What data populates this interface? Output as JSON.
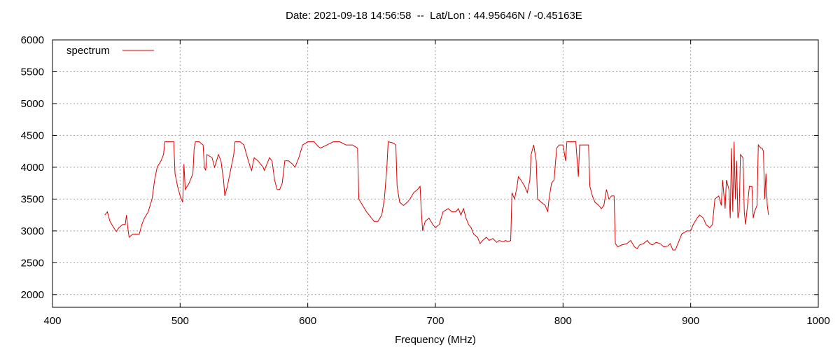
{
  "chart_data": {
    "type": "line",
    "title": "Date: 2021-09-18 14:56:58  --  Lat/Lon : 44.95646N / -0.45163E",
    "x_label": "Frequency (MHz)",
    "xlim": [
      400,
      1000
    ],
    "xticks": [
      400,
      500,
      600,
      700,
      800,
      900,
      1000
    ],
    "ylim": [
      1800,
      6000
    ],
    "yticks": [
      2000,
      2500,
      3000,
      3500,
      4000,
      4500,
      5000,
      5500,
      6000
    ],
    "grid": true,
    "legend": "top-left",
    "x": [
      441,
      443,
      445,
      448,
      450,
      452,
      455,
      457,
      458,
      459,
      460,
      463,
      466,
      468,
      470,
      472,
      475,
      478,
      480,
      482,
      485,
      487,
      488,
      490,
      493,
      495,
      496,
      498,
      500,
      502,
      503,
      504,
      507,
      510,
      511,
      512,
      515,
      518,
      519,
      520,
      521,
      525,
      527,
      530,
      532,
      534,
      535,
      537,
      540,
      542,
      543,
      547,
      550,
      552,
      555,
      556,
      558,
      561,
      563,
      565,
      566,
      568,
      570,
      572,
      574,
      576,
      578,
      580,
      582,
      585,
      588,
      590,
      593,
      596,
      600,
      605,
      608,
      610,
      615,
      620,
      625,
      630,
      635,
      639,
      640,
      643,
      646,
      648,
      650,
      652,
      655,
      658,
      660,
      662,
      663,
      667,
      669,
      670,
      672,
      675,
      678,
      680,
      683,
      686,
      688,
      689,
      690,
      692,
      695,
      698,
      700,
      703,
      706,
      710,
      713,
      716,
      718,
      720,
      722,
      724,
      726,
      728,
      730,
      733,
      735,
      737,
      740,
      742,
      745,
      748,
      750,
      753,
      755,
      757,
      759,
      760,
      762,
      764,
      765,
      767,
      770,
      772,
      774,
      775,
      777,
      779,
      780,
      783,
      786,
      788,
      789,
      791,
      793,
      795,
      797,
      800,
      802,
      803,
      806,
      810,
      812,
      813,
      815,
      820,
      821,
      823,
      825,
      828,
      830,
      832,
      834,
      836,
      838,
      840,
      841,
      843,
      846,
      850,
      853,
      856,
      858,
      860,
      863,
      866,
      868,
      870,
      873,
      876,
      879,
      882,
      884,
      886,
      888,
      890,
      893,
      897,
      900,
      902,
      905,
      907,
      910,
      912,
      915,
      917,
      919,
      922,
      924,
      925,
      927,
      928,
      930,
      931,
      932,
      933,
      934,
      935,
      936,
      937,
      938,
      939,
      941,
      942,
      943,
      944,
      946,
      948,
      949,
      950,
      952,
      953,
      955,
      956,
      957,
      958,
      959,
      960,
      961
    ],
    "series": [
      {
        "name": "spectrum",
        "color": "#e00000",
        "values": [
          3250,
          3300,
          3150,
          3050,
          2990,
          3050,
          3100,
          3100,
          3250,
          3050,
          2900,
          2950,
          2950,
          2950,
          3100,
          3200,
          3300,
          3500,
          3800,
          4000,
          4100,
          4200,
          4400,
          4400,
          4400,
          4400,
          3900,
          3700,
          3550,
          3450,
          4050,
          3650,
          3750,
          3900,
          4300,
          4400,
          4400,
          4350,
          4000,
          3950,
          4200,
          4150,
          4000,
          4200,
          4100,
          3800,
          3550,
          3700,
          4000,
          4200,
          4400,
          4400,
          4350,
          4200,
          4000,
          3950,
          4150,
          4100,
          4050,
          4000,
          3950,
          4050,
          4150,
          4100,
          3800,
          3650,
          3650,
          3750,
          4100,
          4100,
          4050,
          4000,
          4150,
          4350,
          4400,
          4400,
          4330,
          4300,
          4350,
          4400,
          4400,
          4350,
          4350,
          4300,
          3500,
          3400,
          3300,
          3250,
          3200,
          3150,
          3150,
          3250,
          3500,
          4000,
          4400,
          4380,
          4350,
          3700,
          3450,
          3400,
          3450,
          3500,
          3600,
          3650,
          3700,
          3300,
          3000,
          3150,
          3200,
          3100,
          3050,
          3100,
          3300,
          3350,
          3300,
          3300,
          3350,
          3250,
          3350,
          3200,
          3100,
          3050,
          2950,
          2900,
          2800,
          2850,
          2900,
          2850,
          2880,
          2820,
          2850,
          2830,
          2850,
          2830,
          2850,
          3600,
          3500,
          3700,
          3850,
          3800,
          3700,
          3600,
          3800,
          4200,
          4350,
          4100,
          3500,
          3450,
          3400,
          3300,
          3500,
          3750,
          3800,
          4300,
          4350,
          4350,
          4100,
          4400,
          4400,
          4400,
          3850,
          4350,
          4350,
          4350,
          3700,
          3550,
          3450,
          3400,
          3350,
          3400,
          3650,
          3500,
          3550,
          3550,
          2800,
          2750,
          2780,
          2800,
          2850,
          2750,
          2720,
          2780,
          2800,
          2850,
          2800,
          2780,
          2820,
          2800,
          2750,
          2760,
          2800,
          2700,
          2700,
          2800,
          2950,
          3000,
          3000,
          3100,
          3200,
          3250,
          3200,
          3100,
          3050,
          3100,
          3500,
          3550,
          3400,
          3800,
          3350,
          3800,
          3650,
          3200,
          4300,
          3300,
          4400,
          3500,
          4100,
          3200,
          3300,
          4200,
          4150,
          3300,
          3100,
          3300,
          3700,
          3700,
          3200,
          3300,
          3400,
          4350,
          4300,
          4300,
          4250,
          3500,
          3900,
          3400,
          3250
        ]
      }
    ]
  }
}
